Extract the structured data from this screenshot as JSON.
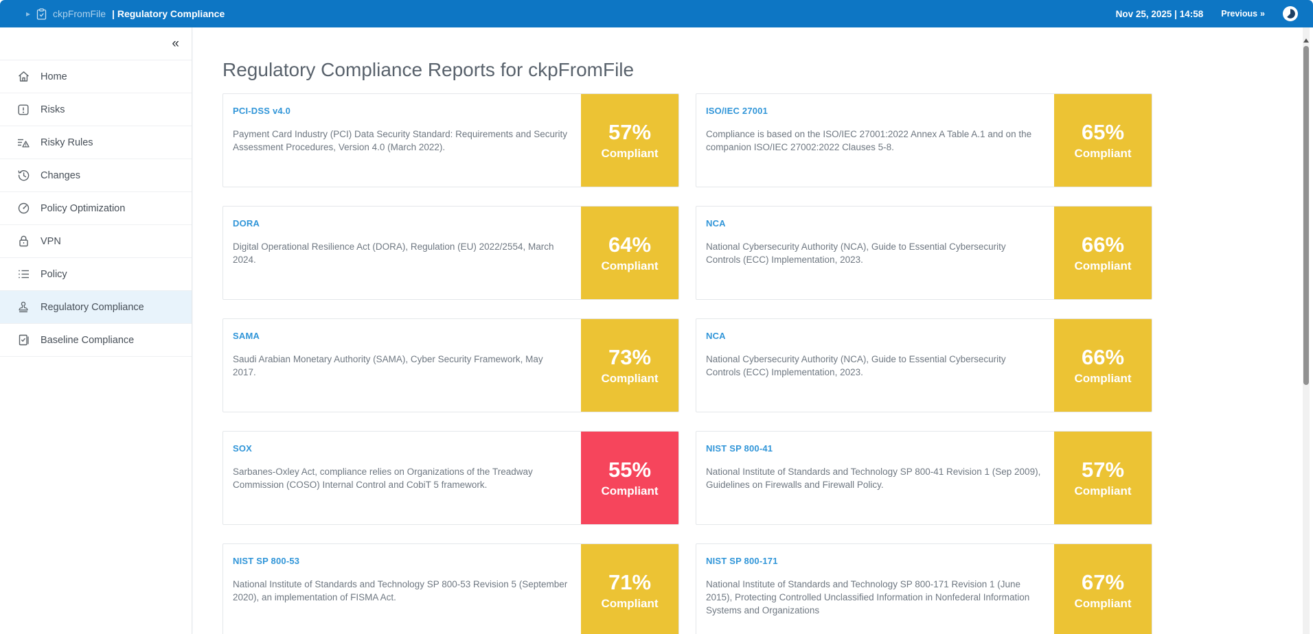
{
  "topbar": {
    "project": "ckpFromFile",
    "separator": "|",
    "page": "Regulatory Compliance",
    "datetime": "Nov 25, 2025 | 14:58",
    "previous_label": "Previous",
    "previous_chevrons": "»"
  },
  "sidebar": {
    "collapse_glyph": "«",
    "items": [
      {
        "label": "Home",
        "icon": "home-icon",
        "selected": false
      },
      {
        "label": "Risks",
        "icon": "risks-icon",
        "selected": false
      },
      {
        "label": "Risky Rules",
        "icon": "risky-rules-icon",
        "selected": false
      },
      {
        "label": "Changes",
        "icon": "changes-history-icon",
        "selected": false
      },
      {
        "label": "Policy Optimization",
        "icon": "gauge-icon",
        "selected": false
      },
      {
        "label": "VPN",
        "icon": "lock-icon",
        "selected": false
      },
      {
        "label": "Policy",
        "icon": "list-icon",
        "selected": false
      },
      {
        "label": "Regulatory Compliance",
        "icon": "stamp-icon",
        "selected": true
      },
      {
        "label": "Baseline Compliance",
        "icon": "checklist-icon",
        "selected": false
      }
    ]
  },
  "main": {
    "title": "Regulatory Compliance Reports for ckpFromFile",
    "compliant_label": "Compliant",
    "cards": [
      {
        "name": "PCI-DSS v4.0",
        "description": "Payment Card Industry (PCI) Data Security Standard: Requirements and Security Assessment Procedures, Version 4.0 (March 2022).",
        "percent": "57%",
        "tone": "warning"
      },
      {
        "name": "ISO/IEC 27001",
        "description": "Compliance is based on the ISO/IEC 27001:2022 Annex A Table A.1 and on the companion ISO/IEC 27002:2022 Clauses 5-8.",
        "percent": "65%",
        "tone": "warning"
      },
      {
        "name": "DORA",
        "description": "Digital Operational Resilience Act (DORA), Regulation (EU) 2022/2554, March 2024.",
        "percent": "64%",
        "tone": "warning"
      },
      {
        "name": "NCA",
        "description": "National Cybersecurity Authority (NCA), Guide to Essential Cybersecurity Controls (ECC) Implementation, 2023.",
        "percent": "66%",
        "tone": "warning"
      },
      {
        "name": "SAMA",
        "description": "Saudi Arabian Monetary Authority (SAMA), Cyber Security Framework, May 2017.",
        "percent": "73%",
        "tone": "warning"
      },
      {
        "name": "NCA",
        "description": "National Cybersecurity Authority (NCA), Guide to Essential Cybersecurity Controls (ECC) Implementation, 2023.",
        "percent": "66%",
        "tone": "warning"
      },
      {
        "name": "SOX",
        "description": "Sarbanes-Oxley Act, compliance relies on Organizations of the Treadway Commission (COSO) Internal Control and CobiT 5 framework.",
        "percent": "55%",
        "tone": "danger"
      },
      {
        "name": "NIST SP 800-41",
        "description": "National Institute of Standards and Technology SP 800-41 Revision 1 (Sep 2009), Guidelines on Firewalls and Firewall Policy.",
        "percent": "57%",
        "tone": "warning"
      },
      {
        "name": "NIST SP 800-53",
        "description": "National Institute of Standards and Technology SP 800-53 Revision 5 (September 2020), an implementation of FISMA Act.",
        "percent": "71%",
        "tone": "warning"
      },
      {
        "name": "NIST SP 800-171",
        "description": "National Institute of Standards and Technology SP 800-171 Revision 1 (June 2015), Protecting Controlled Unclassified Information in Nonfederal Information Systems and Organizations",
        "percent": "67%",
        "tone": "warning"
      }
    ]
  },
  "colors": {
    "topbar_blue": "#0d76c4",
    "warning": "#ecc334",
    "danger": "#f6455c",
    "link_blue": "#3095d8",
    "selected_item_bg": "#e8f3fb"
  }
}
